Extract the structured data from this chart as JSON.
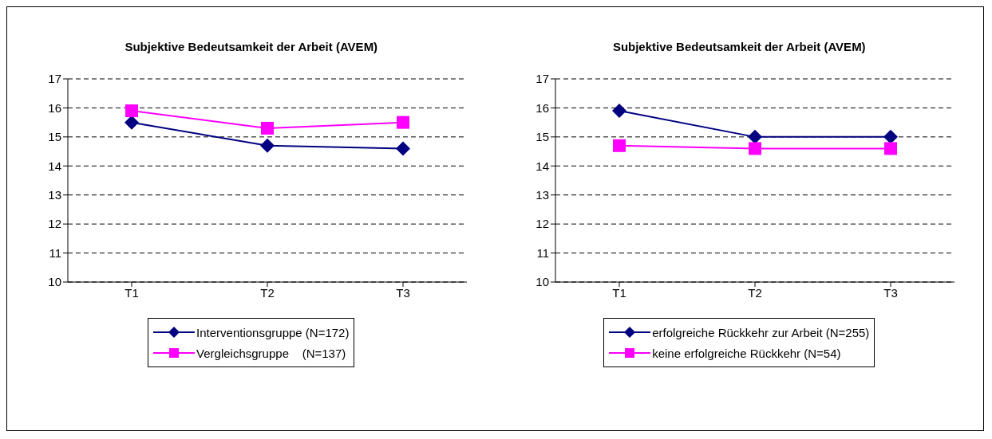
{
  "chart_data": [
    {
      "type": "line",
      "title": "Subjektive Bedeutsamkeit der Arbeit (AVEM)",
      "categories": [
        "T1",
        "T2",
        "T3"
      ],
      "ylim": [
        10,
        17
      ],
      "yticks": [
        10,
        11,
        12,
        13,
        14,
        15,
        16,
        17
      ],
      "grid": "y",
      "legend": "bottom",
      "series": [
        {
          "name": "Interventionsgruppe (N=172)",
          "color": "#000080",
          "marker": "diamond",
          "values": [
            15.5,
            14.7,
            14.6
          ]
        },
        {
          "name": "Vergleichsgruppe    (N=137)",
          "color": "#ff00ff",
          "marker": "square",
          "values": [
            15.9,
            15.3,
            15.5
          ]
        }
      ]
    },
    {
      "type": "line",
      "title": "Subjektive Bedeutsamkeit der Arbeit (AVEM)",
      "categories": [
        "T1",
        "T2",
        "T3"
      ],
      "ylim": [
        10,
        17
      ],
      "yticks": [
        10,
        11,
        12,
        13,
        14,
        15,
        16,
        17
      ],
      "grid": "y",
      "legend": "bottom",
      "series": [
        {
          "name": "erfolgreiche Rückkehr zur Arbeit (N=255)",
          "color": "#000080",
          "marker": "diamond",
          "values": [
            15.9,
            15.0,
            15.0
          ]
        },
        {
          "name": "keine erfolgreiche Rückkehr (N=54)",
          "color": "#ff00ff",
          "marker": "square",
          "values": [
            14.7,
            14.6,
            14.6
          ]
        }
      ]
    }
  ]
}
